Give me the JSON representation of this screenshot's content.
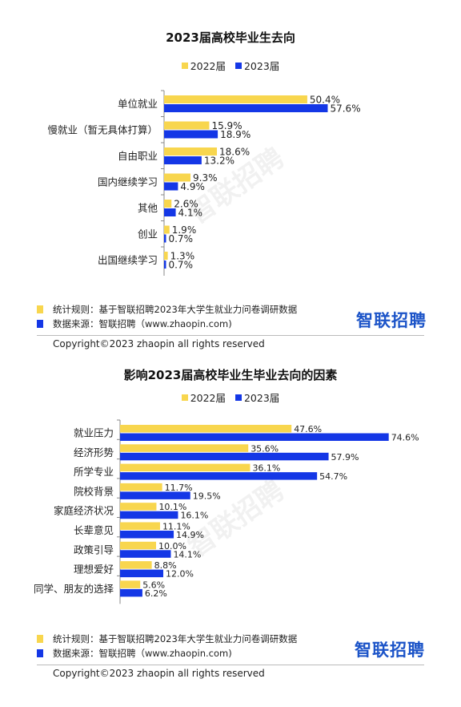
{
  "colors": {
    "y2022": "#f8d64e",
    "y2023": "#1437e6",
    "logo": "#1c54c8"
  },
  "chart_data": [
    {
      "type": "bar",
      "orientation": "horizontal",
      "title": "2023届高校毕业生去向",
      "categories": [
        "单位就业",
        "慢就业（暂无具体打算）",
        "自由职业",
        "国内继续学习",
        "其他",
        "创业",
        "出国继续学习"
      ],
      "series": [
        {
          "name": "2022届",
          "values": [
            50.4,
            15.9,
            18.6,
            9.3,
            2.6,
            1.9,
            1.3
          ],
          "labels": [
            "50.4%",
            "15.9%",
            "18.6%",
            "9.3%",
            "2.6%",
            "1.9%",
            "1.3%"
          ]
        },
        {
          "name": "2023届",
          "values": [
            57.6,
            18.9,
            13.2,
            4.9,
            4.1,
            0.7,
            0.7
          ],
          "labels": [
            "57.6%",
            "18.9%",
            "13.2%",
            "4.9%",
            "4.1%",
            "0.7%",
            "0.7%"
          ]
        }
      ],
      "legend_position": "top",
      "grid": false
    },
    {
      "type": "bar",
      "orientation": "horizontal",
      "title": "影响2023届高校毕业生毕业去向的因素",
      "categories": [
        "就业压力",
        "经济形势",
        "所学专业",
        "院校背景",
        "家庭经济状况",
        "长辈意见",
        "政策引导",
        "理想爱好",
        "同学、朋友的选择"
      ],
      "series": [
        {
          "name": "2022届",
          "values": [
            47.6,
            35.6,
            36.1,
            11.7,
            10.1,
            11.1,
            10.0,
            8.8,
            5.6
          ],
          "labels": [
            "47.6%",
            "35.6%",
            "36.1%",
            "11.7%",
            "10.1%",
            "11.1%",
            "10.0%",
            "8.8%",
            "5.6%"
          ]
        },
        {
          "name": "2023届",
          "values": [
            74.6,
            57.9,
            54.7,
            19.5,
            16.1,
            14.9,
            14.1,
            12.0,
            6.2
          ],
          "labels": [
            "74.6%",
            "57.9%",
            "54.7%",
            "19.5%",
            "16.1%",
            "14.9%",
            "14.1%",
            "12.0%",
            "6.2%"
          ]
        }
      ],
      "legend_position": "top",
      "grid": false
    }
  ],
  "notes": {
    "rule": "统计规则：基于智联招聘2023年大学生就业力问卷调研数据",
    "source": "数据来源：智联招聘（www.zhaopin.com)"
  },
  "logo_text": "智联招聘",
  "copyright": "Copyright©2023 zhaopin all rights reserved",
  "watermark": "智联招聘"
}
